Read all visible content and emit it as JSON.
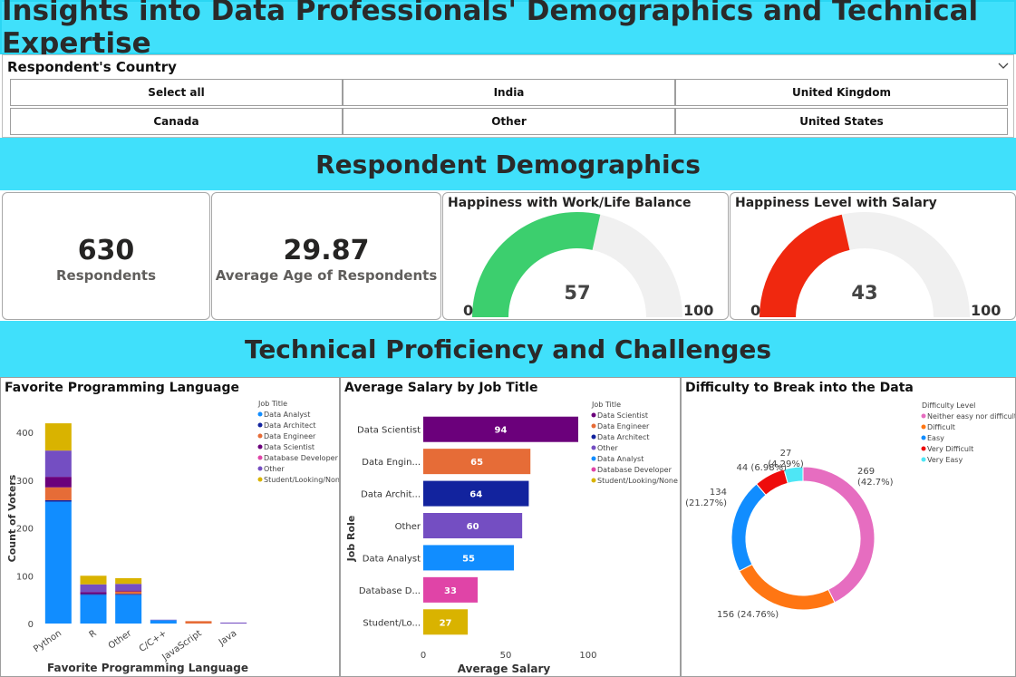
{
  "title": "Insights into Data Professionals' Demographics and Technical Expertise",
  "slicer": {
    "title": "Respondent's Country",
    "items": [
      "Select all",
      "India",
      "United Kingdom",
      "Canada",
      "Other",
      "United States"
    ]
  },
  "sections": {
    "demographics": "Respondent Demographics",
    "technical": "Technical Proficiency and Challenges"
  },
  "kpis": {
    "respondents": {
      "value": "630",
      "label": "Respondents"
    },
    "avg_age": {
      "value": "29.87",
      "label": "Average Age of Respondents"
    }
  },
  "gauges": {
    "work_life": {
      "title": "Happiness with Work/Life Balance",
      "value": 57,
      "value_text": "57",
      "min": "0",
      "max": "100",
      "color": "#3ccf6e"
    },
    "salary": {
      "title": "Happiness Level with Salary",
      "value": 43,
      "value_text": "43",
      "min": "0",
      "max": "100",
      "color": "#f0280f"
    }
  },
  "chart_data": [
    {
      "type": "bar",
      "stacked": true,
      "title": "Favorite Programming Language",
      "xlabel": "Favorite Programming Language",
      "ylabel": "Count of Voters",
      "ylim": [
        0,
        440
      ],
      "yticks": [
        0,
        100,
        200,
        300,
        400
      ],
      "categories": [
        "Python",
        "R",
        "Other",
        "C/C++",
        "JavaScript",
        "Java"
      ],
      "legend_title": "Job Title",
      "legend_position": "top-right",
      "series": [
        {
          "name": "Data Analyst",
          "color": "#118dff",
          "values": [
            255,
            60,
            60,
            7,
            0,
            0
          ]
        },
        {
          "name": "Data Architect",
          "color": "#12239e",
          "values": [
            3,
            2,
            2,
            0,
            0,
            0
          ]
        },
        {
          "name": "Data Engineer",
          "color": "#e66c37",
          "values": [
            27,
            0,
            5,
            0,
            5,
            0
          ]
        },
        {
          "name": "Data Scientist",
          "color": "#6b007b",
          "values": [
            22,
            4,
            2,
            0,
            0,
            0
          ]
        },
        {
          "name": "Database Developer",
          "color": "#e044a7",
          "values": [
            0,
            0,
            0,
            0,
            0,
            0
          ]
        },
        {
          "name": "Other",
          "color": "#744ec2",
          "values": [
            55,
            16,
            14,
            1,
            0,
            2
          ]
        },
        {
          "name": "Student/Looking/None",
          "color": "#d9b300",
          "values": [
            57,
            18,
            12,
            0,
            0,
            0
          ]
        }
      ]
    },
    {
      "type": "bar",
      "orientation": "horizontal",
      "title": "Average Salary by Job Title",
      "xlabel": "Average Salary",
      "ylabel": "Job Role",
      "xlim": [
        0,
        105
      ],
      "xticks": [
        0,
        50,
        100
      ],
      "categories": [
        "Data Scientist",
        "Data Engin...",
        "Data Archit...",
        "Other",
        "Data Analyst",
        "Database D...",
        "Student/Lo..."
      ],
      "values": [
        94,
        65,
        64,
        60,
        55,
        33,
        27
      ],
      "colors": [
        "#6b007b",
        "#e66c37",
        "#12239e",
        "#744ec2",
        "#118dff",
        "#e044a7",
        "#d9b300"
      ],
      "legend_title": "Job Title",
      "legend": [
        "Data Scientist",
        "Data Engineer",
        "Data Architect",
        "Other",
        "Data Analyst",
        "Database Developer",
        "Student/Looking/None"
      ],
      "legend_position": "top-right"
    },
    {
      "type": "pie",
      "donut": true,
      "title": "Difficulty to Break into the Data",
      "legend_title": "Difficulty Level",
      "legend_position": "top-right",
      "slices": [
        {
          "name": "Neither easy nor difficult",
          "value": 269,
          "label": "269",
          "pct": "(42.7%)",
          "color": "#e66dc0"
        },
        {
          "name": "Difficult",
          "value": 156,
          "label": "156 (24.76%)",
          "color": "#ff7613"
        },
        {
          "name": "Easy",
          "value": 134,
          "label": "134",
          "pct": "(21.27%)",
          "color": "#118dff"
        },
        {
          "name": "Very Difficult",
          "value": 44,
          "label": "44 (6.98%)",
          "color": "#ee0c0c"
        },
        {
          "name": "Very Easy",
          "value": 27,
          "label": "27",
          "pct": "(4.29%)",
          "color": "#4ee6f5"
        }
      ]
    }
  ]
}
